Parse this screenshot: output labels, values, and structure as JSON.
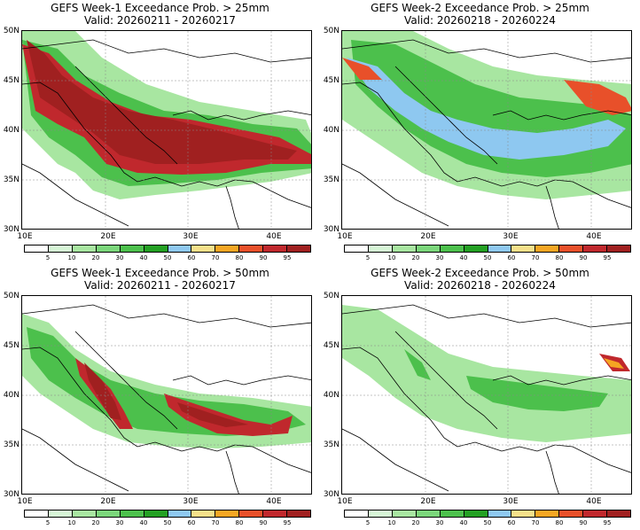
{
  "panels": [
    {
      "title": "GEFS Week-1 Exceedance Prob. > 25mm",
      "valid": "Valid: 20260211 - 20260217"
    },
    {
      "title": "GEFS Week-2 Exceedance Prob. > 25mm",
      "valid": "Valid: 20260218 - 20260224"
    },
    {
      "title": "GEFS Week-1 Exceedance Prob. > 50mm",
      "valid": "Valid: 20260211 - 20260217"
    },
    {
      "title": "GEFS Week-2 Exceedance Prob. > 50mm",
      "valid": "Valid: 20260218 - 20260224"
    }
  ],
  "lat_labels": [
    "50N",
    "45N",
    "40N",
    "35N",
    "30N"
  ],
  "lon_labels": [
    "10E",
    "20E",
    "30E",
    "40E"
  ],
  "colorbar": {
    "labels": [
      "5",
      "10",
      "20",
      "30",
      "40",
      "50",
      "60",
      "70",
      "80",
      "90",
      "95"
    ],
    "colors": [
      "#ffffff",
      "#d6f5d6",
      "#a8e6a1",
      "#7bd67b",
      "#4cc04c",
      "#23a023",
      "#8ec8f0",
      "#f5e08a",
      "#f5a623",
      "#e8502a",
      "#c0282d",
      "#a02020"
    ]
  },
  "shading": {
    "colors": {
      "p10": "#a8e6a1",
      "p30": "#7bd67b",
      "p40": "#4cc04c",
      "p50": "#23a023",
      "p60": "#8ec8f0",
      "p70": "#f5e08a",
      "p80": "#f5a623",
      "p90": "#e8502a",
      "p95": "#c0282d"
    }
  }
}
